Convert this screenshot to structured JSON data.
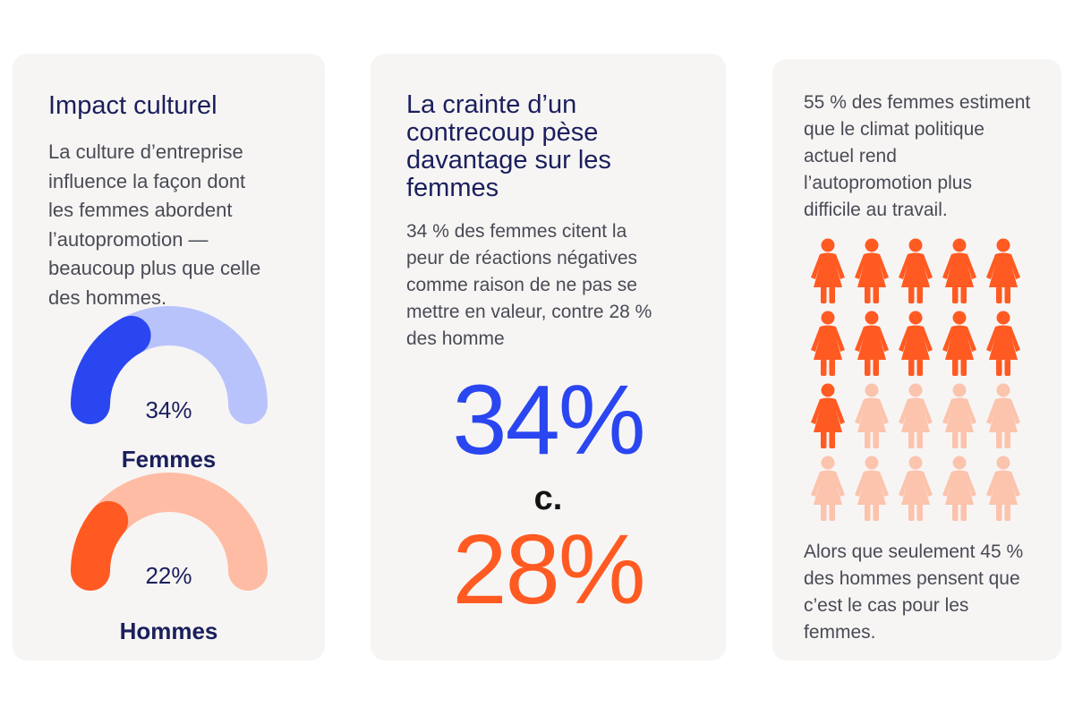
{
  "card1": {
    "title": "Impact culturel",
    "body_lines": [
      "La culture d’entreprise",
      "influence la façon dont",
      "les femmes abordent",
      "l’autopromotion —",
      "beaucoup plus que celle",
      "des hommes."
    ]
  },
  "card2": {
    "title_lines": [
      "La crainte d’un",
      "contrecoup pèse",
      "davantage sur les",
      "femmes"
    ],
    "body_lines": [
      "34 % des femmes citent la",
      "peur de réactions négatives",
      "comme raison de ne pas se",
      "mettre en valeur, contre 28 %",
      "des homme"
    ],
    "big_femmes": "34%",
    "separator": "c.",
    "big_hommes": "28%"
  },
  "card3": {
    "top_lines": [
      "55 % des femmes estiment",
      "que le climat politique",
      "actuel rend",
      "l’autopromotion plus",
      "difficile au travail."
    ],
    "bottom_lines": [
      "Alors que seulement 45 %",
      "des hommes pensent que",
      "c’est le cas pour les",
      "femmes."
    ]
  },
  "chart_data": [
    {
      "type": "gauge",
      "title": "Impact culturel",
      "series": [
        {
          "name": "Femmes",
          "label": "34%",
          "value": 34,
          "max": 100,
          "color": "#2a46f0",
          "track_color": "#b9c3fb"
        },
        {
          "name": "Hommes",
          "label": "22%",
          "value": 22,
          "max": 100,
          "color": "#ff5a22",
          "track_color": "#ffbca4"
        }
      ]
    },
    {
      "type": "pictogram",
      "total": 20,
      "highlighted": 11,
      "columns": 5,
      "highlight_color": "#ff5a22",
      "base_color": "#fcc3ad"
    }
  ],
  "colors": {
    "card_bg": "#f7f5f4",
    "navy": "#1a1f5c",
    "blue": "#2a46f0",
    "orange": "#ff5a22"
  }
}
